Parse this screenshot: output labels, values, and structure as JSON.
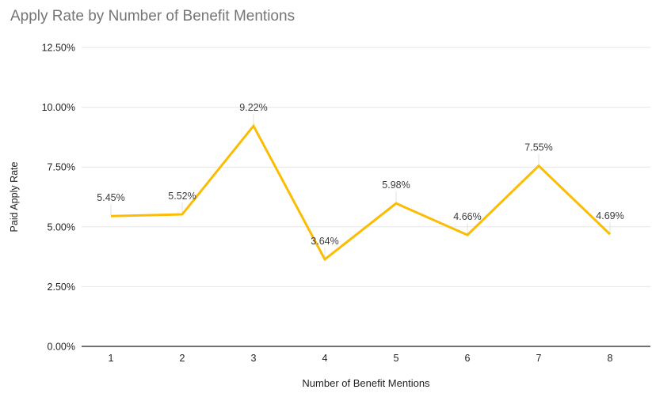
{
  "chart_data": {
    "type": "line",
    "title": "Apply Rate by Number of Benefit Mentions",
    "xlabel": "Number of Benefit Mentions",
    "ylabel": "Paid Apply Rate",
    "categories": [
      "1",
      "2",
      "3",
      "4",
      "5",
      "6",
      "7",
      "8"
    ],
    "values": [
      5.45,
      5.52,
      9.22,
      3.64,
      5.98,
      4.66,
      7.55,
      4.69
    ],
    "point_labels": [
      "5.45%",
      "5.52%",
      "9.22%",
      "3.64%",
      "5.98%",
      "4.66%",
      "7.55%",
      "4.69%"
    ],
    "y_tick_labels": [
      "0.00%",
      "2.50%",
      "5.00%",
      "7.50%",
      "10.00%",
      "12.50%"
    ],
    "y_tick_values": [
      0,
      2.5,
      5,
      7.5,
      10,
      12.5
    ],
    "ylim": [
      0,
      12.5
    ],
    "grid": "horizontal",
    "legend": "none",
    "colors": {
      "series_line": "#FBBC04",
      "title_text": "#757575",
      "tick_text": "#222222",
      "point_label_text": "#3c3c3c",
      "gridline": "#e6e6e6",
      "axis_line": "#424242",
      "leader_line": "#e0e0e0",
      "background": "#ffffff"
    }
  }
}
